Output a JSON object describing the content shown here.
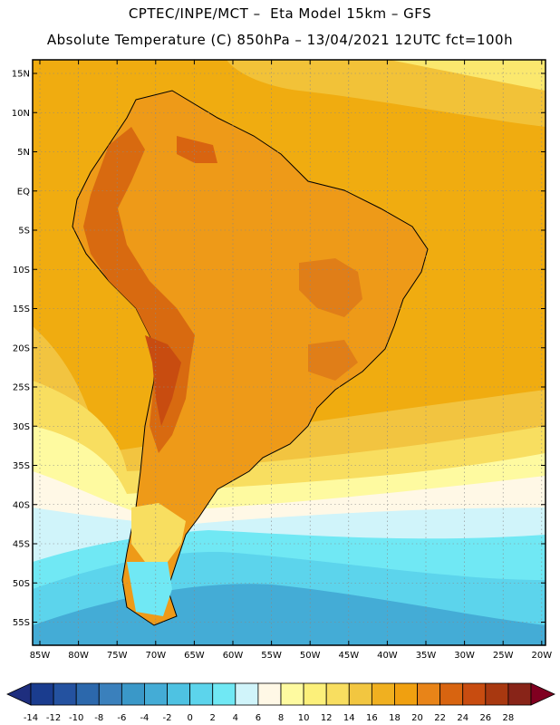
{
  "header": {
    "line1": "CPTEC/INPE/MCT –  Eta Model 15km – GFS",
    "line2": "Absolute Temperature (C) 850hPa – 13/04/2021 12UTC fct=100h"
  },
  "map": {
    "lat_labels": [
      "15N",
      "10N",
      "5N",
      "EQ",
      "5S",
      "10S",
      "15S",
      "20S",
      "25S",
      "30S",
      "35S",
      "40S",
      "45S",
      "50S",
      "55S"
    ],
    "lon_labels": [
      "85W",
      "80W",
      "75W",
      "70W",
      "65W",
      "60W",
      "55W",
      "50W",
      "45W",
      "40W",
      "35W",
      "30W",
      "25W",
      "20W"
    ],
    "gridlines": true,
    "colors": {
      "ocean_warm": "#f0ac10",
      "land": "#ee9a18",
      "andes": "#d86a10",
      "ocean_cold": "#5fd2ee"
    }
  },
  "colorbar": {
    "ticks": [
      "-14",
      "-12",
      "-10",
      "-8",
      "-6",
      "-4",
      "-2",
      "0",
      "2",
      "4",
      "6",
      "8",
      "10",
      "12",
      "14",
      "16",
      "18",
      "20",
      "22",
      "24",
      "26",
      "28"
    ],
    "colors": [
      "#1a3c8e",
      "#2452a0",
      "#2c68ac",
      "#3a80bc",
      "#3a98c8",
      "#44acd6",
      "#4ec2e2",
      "#5cd4ec",
      "#70e8f4",
      "#d0f4fa",
      "#fff8e6",
      "#fefaa0",
      "#fcf07a",
      "#f8de60",
      "#f2c640",
      "#f0b020",
      "#f0a010",
      "#e88418",
      "#d86410",
      "#c84c10",
      "#a83810",
      "#882418"
    ],
    "left_arrow_color": "#1e2e7e",
    "right_arrow_color": "#800020"
  }
}
